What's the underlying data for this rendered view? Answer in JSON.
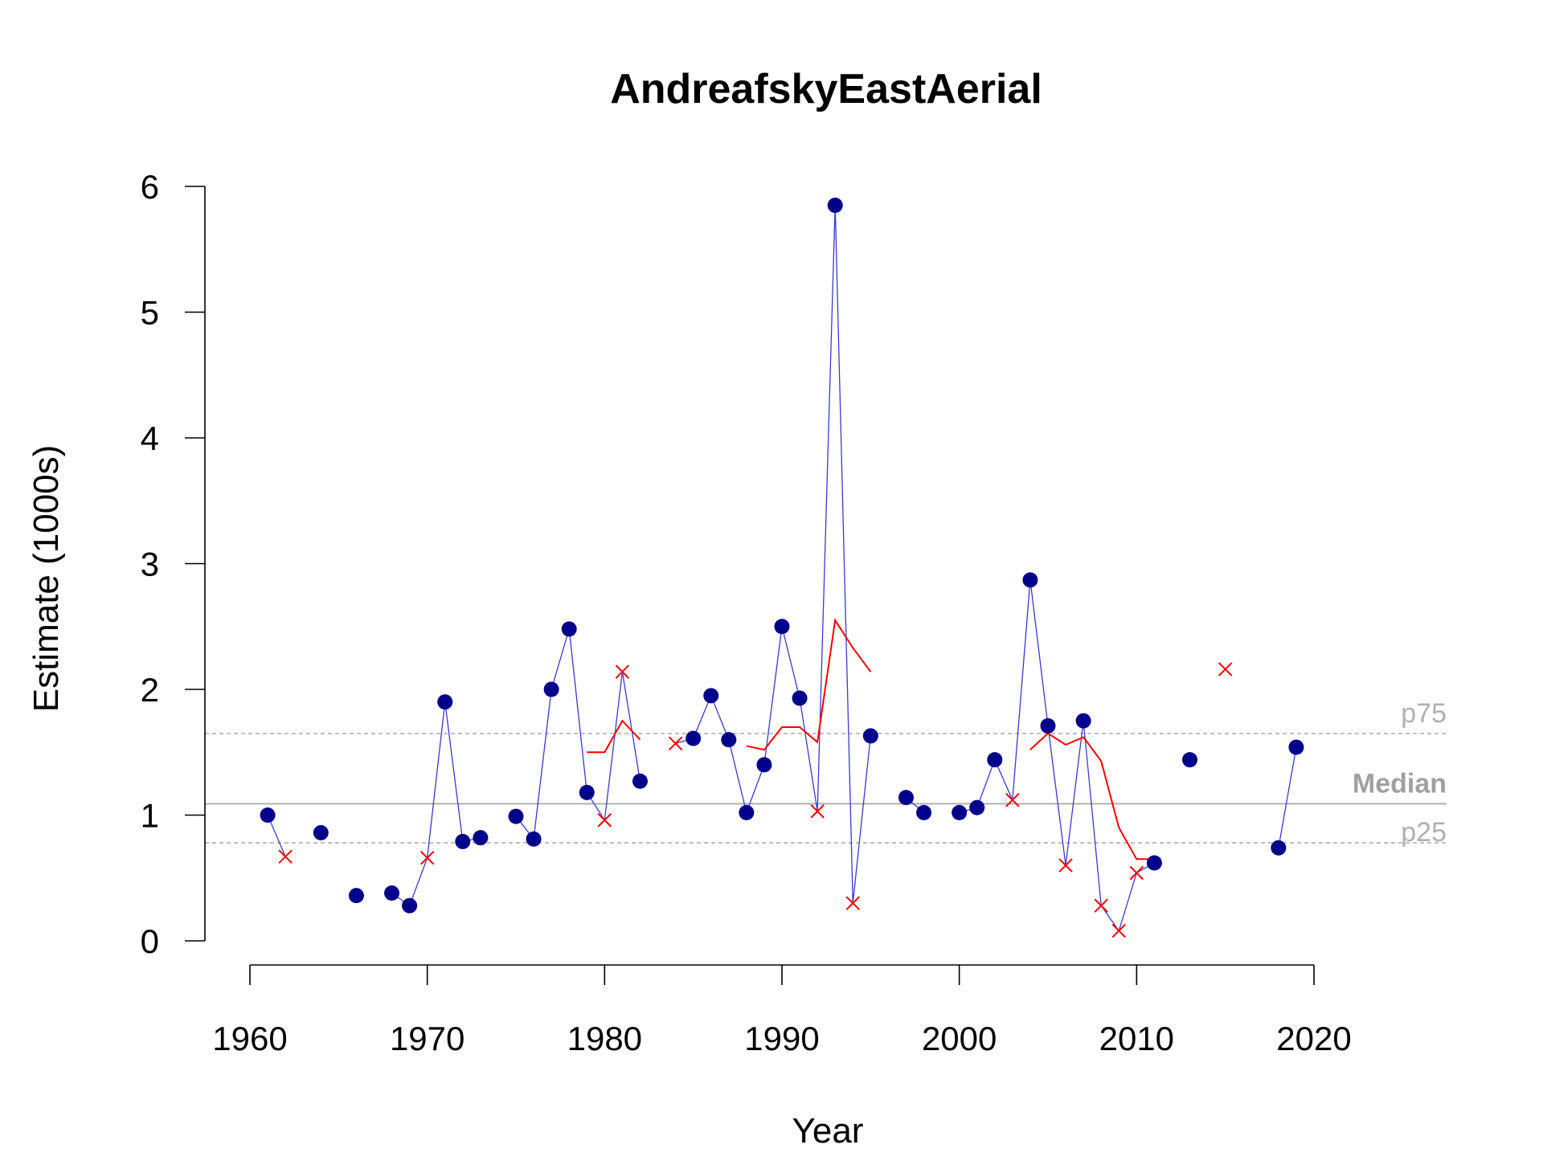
{
  "chart_data": {
    "type": "line",
    "title": "AndreafskyEastAerial",
    "xlabel": "Year",
    "ylabel": "Estimate (1000s)",
    "xlim": [
      1960,
      2020
    ],
    "ylim": [
      0,
      6
    ],
    "x_ticks": [
      "1960",
      "1970",
      "1980",
      "1990",
      "2000",
      "2010",
      "2020"
    ],
    "y_ticks": [
      "0",
      "1",
      "2",
      "3",
      "4",
      "5",
      "6"
    ],
    "grid": false,
    "colors": {
      "observed": "#00008b",
      "connector": "#3a3acf",
      "estimated": "#ff0000",
      "smooth": "#ff0000",
      "reference": "#b0b0b0"
    },
    "reference_lines": [
      {
        "label": "p75",
        "value": 1.65,
        "style": "dashed"
      },
      {
        "label": "Median",
        "value": 1.09,
        "style": "solid"
      },
      {
        "label": "p25",
        "value": 0.78,
        "style": "dashed"
      }
    ],
    "series_points": [
      {
        "year": 1961,
        "value": 1.0,
        "kind": "observed"
      },
      {
        "year": 1962,
        "value": 0.67,
        "kind": "estimated"
      },
      {
        "year": 1964,
        "value": 0.86,
        "kind": "observed"
      },
      {
        "year": 1966,
        "value": 0.36,
        "kind": "observed"
      },
      {
        "year": 1968,
        "value": 0.38,
        "kind": "observed"
      },
      {
        "year": 1969,
        "value": 0.28,
        "kind": "observed"
      },
      {
        "year": 1970,
        "value": 0.66,
        "kind": "estimated"
      },
      {
        "year": 1971,
        "value": 1.9,
        "kind": "observed"
      },
      {
        "year": 1972,
        "value": 0.79,
        "kind": "observed"
      },
      {
        "year": 1973,
        "value": 0.82,
        "kind": "observed"
      },
      {
        "year": 1975,
        "value": 0.99,
        "kind": "observed"
      },
      {
        "year": 1976,
        "value": 0.81,
        "kind": "observed"
      },
      {
        "year": 1977,
        "value": 2.0,
        "kind": "observed"
      },
      {
        "year": 1978,
        "value": 2.48,
        "kind": "observed"
      },
      {
        "year": 1979,
        "value": 1.18,
        "kind": "observed"
      },
      {
        "year": 1980,
        "value": 0.96,
        "kind": "estimated"
      },
      {
        "year": 1981,
        "value": 2.14,
        "kind": "estimated"
      },
      {
        "year": 1982,
        "value": 1.27,
        "kind": "observed"
      },
      {
        "year": 1984,
        "value": 1.57,
        "kind": "estimated"
      },
      {
        "year": 1985,
        "value": 1.61,
        "kind": "observed"
      },
      {
        "year": 1986,
        "value": 1.95,
        "kind": "observed"
      },
      {
        "year": 1987,
        "value": 1.6,
        "kind": "observed"
      },
      {
        "year": 1988,
        "value": 1.02,
        "kind": "observed"
      },
      {
        "year": 1989,
        "value": 1.4,
        "kind": "observed"
      },
      {
        "year": 1990,
        "value": 2.5,
        "kind": "observed"
      },
      {
        "year": 1991,
        "value": 1.93,
        "kind": "observed"
      },
      {
        "year": 1992,
        "value": 1.03,
        "kind": "estimated"
      },
      {
        "year": 1993,
        "value": 5.85,
        "kind": "observed"
      },
      {
        "year": 1994,
        "value": 0.3,
        "kind": "estimated"
      },
      {
        "year": 1995,
        "value": 1.63,
        "kind": "observed"
      },
      {
        "year": 1997,
        "value": 1.14,
        "kind": "observed"
      },
      {
        "year": 1998,
        "value": 1.02,
        "kind": "observed"
      },
      {
        "year": 2000,
        "value": 1.02,
        "kind": "observed"
      },
      {
        "year": 2001,
        "value": 1.06,
        "kind": "observed"
      },
      {
        "year": 2002,
        "value": 1.44,
        "kind": "observed"
      },
      {
        "year": 2003,
        "value": 1.12,
        "kind": "estimated"
      },
      {
        "year": 2004,
        "value": 2.87,
        "kind": "observed"
      },
      {
        "year": 2005,
        "value": 1.71,
        "kind": "observed"
      },
      {
        "year": 2006,
        "value": 0.6,
        "kind": "estimated"
      },
      {
        "year": 2007,
        "value": 1.75,
        "kind": "observed"
      },
      {
        "year": 2008,
        "value": 0.28,
        "kind": "estimated"
      },
      {
        "year": 2009,
        "value": 0.08,
        "kind": "estimated"
      },
      {
        "year": 2010,
        "value": 0.54,
        "kind": "estimated"
      },
      {
        "year": 2011,
        "value": 0.62,
        "kind": "observed"
      },
      {
        "year": 2013,
        "value": 1.44,
        "kind": "observed"
      },
      {
        "year": 2015,
        "value": 2.16,
        "kind": "estimated"
      },
      {
        "year": 2018,
        "value": 0.74,
        "kind": "observed"
      },
      {
        "year": 2019,
        "value": 1.54,
        "kind": "observed"
      }
    ],
    "smooth_segments": [
      {
        "x": [
          1979,
          1980,
          1981,
          1982
        ],
        "y": [
          1.5,
          1.5,
          1.75,
          1.6
        ]
      },
      {
        "x": [
          1988,
          1989,
          1990,
          1991,
          1992,
          1993,
          1994,
          1995
        ],
        "y": [
          1.55,
          1.52,
          1.7,
          1.7,
          1.58,
          2.55,
          2.33,
          2.14
        ]
      },
      {
        "x": [
          2004,
          2005,
          2006,
          2007,
          2008,
          2009,
          2010,
          2011
        ],
        "y": [
          1.52,
          1.65,
          1.56,
          1.62,
          1.43,
          0.9,
          0.65,
          0.65
        ]
      }
    ]
  }
}
